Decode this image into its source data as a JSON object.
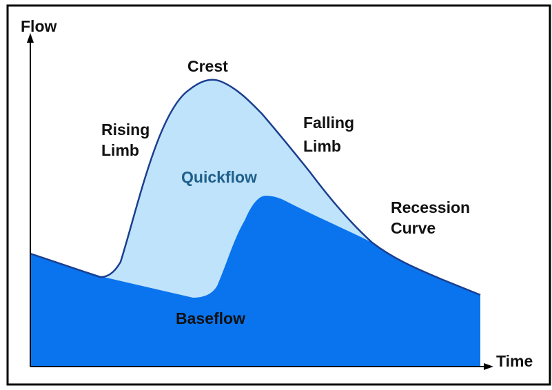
{
  "axes": {
    "y_label": "Flow",
    "x_label": "Time"
  },
  "labels": {
    "crest": "Crest",
    "rising_limb": [
      "Rising",
      "Limb"
    ],
    "falling_limb": [
      "Falling",
      "Limb"
    ],
    "quickflow": "Quickflow",
    "recession_curve": [
      "Recession",
      "Curve"
    ],
    "baseflow": "Baseflow"
  }
}
